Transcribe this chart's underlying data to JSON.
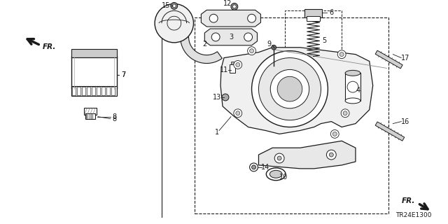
{
  "bg_color": "#ffffff",
  "line_color": "#1a1a1a",
  "diagram_code": "TR24E1300",
  "fig_w": 6.4,
  "fig_h": 3.2,
  "dpi": 100
}
